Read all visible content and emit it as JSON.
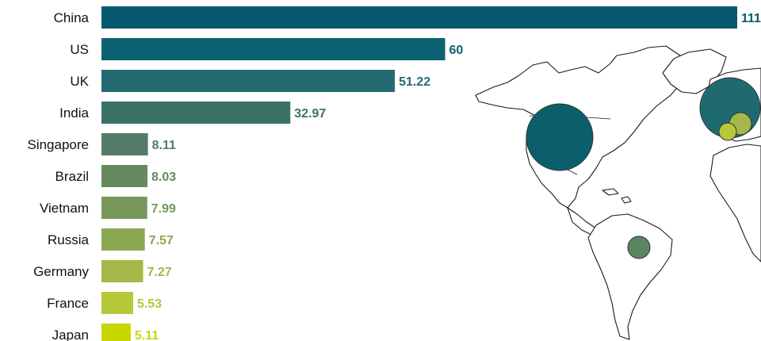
{
  "chart_data": {
    "type": "bar",
    "orientation": "horizontal",
    "title": "",
    "xlabel": "",
    "ylabel": "",
    "xlim": [
      0,
      111
    ],
    "grid": false,
    "legend": "none",
    "categories": [
      "China",
      "US",
      "UK",
      "India",
      "Singapore",
      "Brazil",
      "Vietnam",
      "Russia",
      "Germany",
      "France",
      "Japan"
    ],
    "values": [
      111,
      60,
      51.22,
      32.97,
      8.11,
      8.03,
      7.99,
      7.57,
      7.27,
      5.53,
      5.11
    ],
    "value_labels": [
      "111",
      "60",
      "51.22",
      "32.97",
      "8.11",
      "8.03",
      "7.99",
      "7.57",
      "7.27",
      "5.53",
      "5.11"
    ],
    "colors": [
      "#075a6e",
      "#0b6270",
      "#246b71",
      "#3a7266",
      "#537b68",
      "#66895d",
      "#77975a",
      "#8aa852",
      "#a3b848",
      "#b6c83a",
      "#c9d600"
    ],
    "map_bubbles": [
      {
        "country": "US",
        "value": 60
      },
      {
        "country": "UK",
        "value": 51.22
      },
      {
        "country": "Brazil",
        "value": 8.03
      },
      {
        "country": "Germany",
        "value": 7.27
      },
      {
        "country": "France",
        "value": 5.53
      }
    ]
  }
}
